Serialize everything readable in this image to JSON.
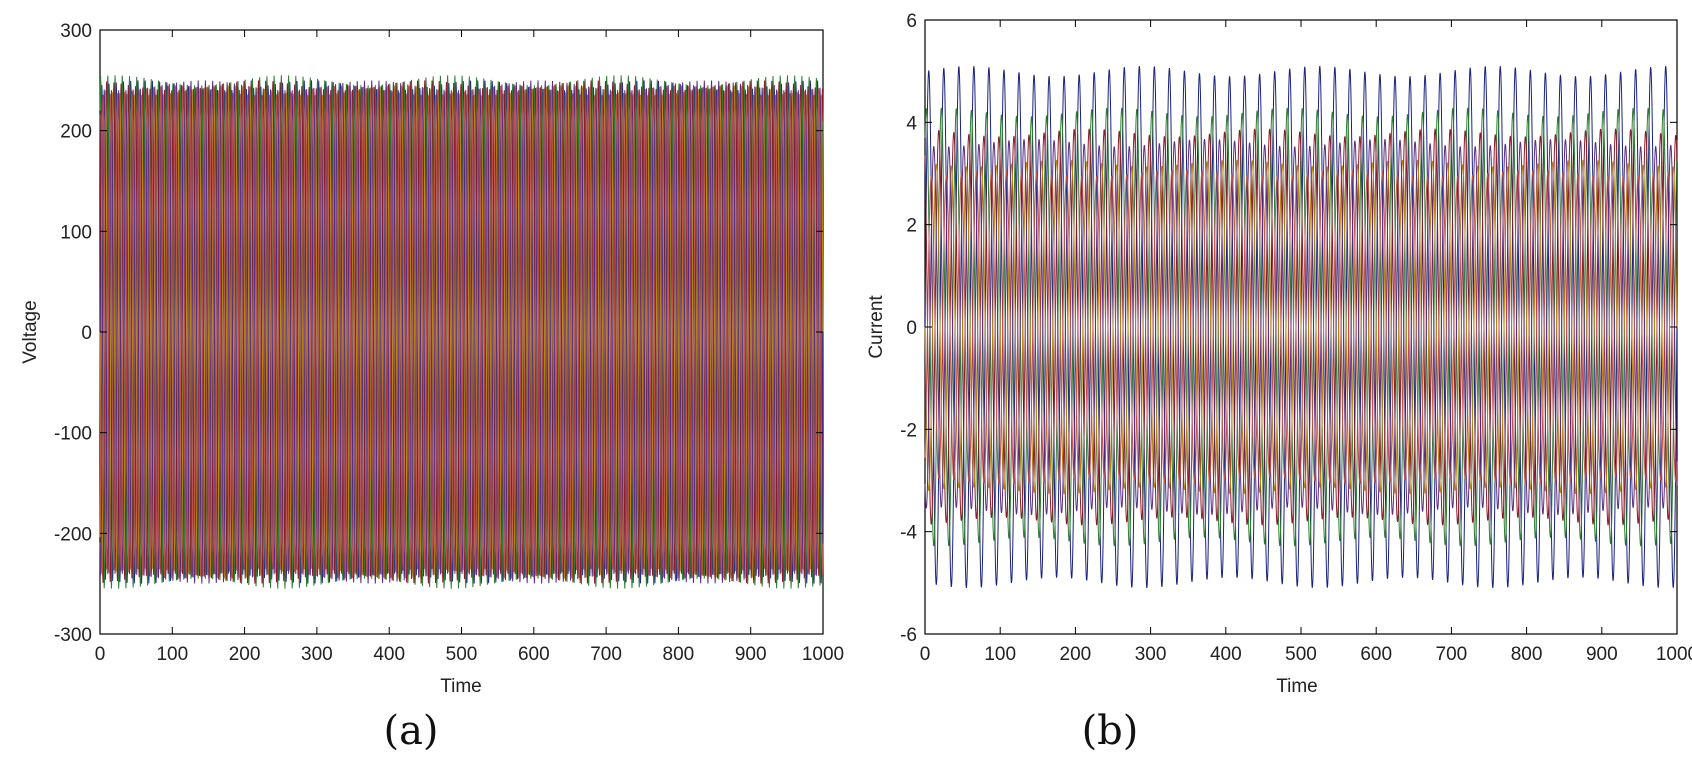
{
  "chart_data": [
    {
      "type": "line",
      "caption": "(a)",
      "xlabel": "Time",
      "ylabel": "Voltage",
      "xlim": [
        0,
        1000
      ],
      "ylim": [
        -300,
        300
      ],
      "xticks": [
        "0",
        "100",
        "200",
        "300",
        "400",
        "500",
        "600",
        "700",
        "800",
        "900",
        "1000"
      ],
      "yticks": [
        "300",
        "200",
        "100",
        "0",
        "-100",
        "-200",
        "-300"
      ],
      "grid": false,
      "series": [
        {
          "color": "#1f2a8c",
          "amplitude": 245,
          "phase_deg": 0
        },
        {
          "color": "#2e7d32",
          "amplitude": 250,
          "phase_deg": 60
        },
        {
          "color": "#8b1a2b",
          "amplitude": 245,
          "phase_deg": 120
        },
        {
          "color": "#b8860b",
          "amplitude": 240,
          "phase_deg": 180
        },
        {
          "color": "#5a2d82",
          "amplitude": 245,
          "phase_deg": 240
        },
        {
          "color": "#c0504d",
          "amplitude": 240,
          "phase_deg": 300
        }
      ],
      "cycles": 100
    },
    {
      "type": "line",
      "caption": "(b)",
      "xlabel": "Time",
      "ylabel": "Current",
      "xlim": [
        0,
        1000
      ],
      "ylim": [
        -6,
        6
      ],
      "xticks": [
        "0",
        "100",
        "200",
        "300",
        "400",
        "500",
        "600",
        "700",
        "800",
        "900",
        "1000"
      ],
      "yticks": [
        "6",
        "4",
        "2",
        "0",
        "-2",
        "-4",
        "-6"
      ],
      "grid": false,
      "series": [
        {
          "color": "#1a237e",
          "amplitude": 5.0,
          "phase_deg": 0
        },
        {
          "color": "#2e7d32",
          "amplitude": 4.2,
          "phase_deg": 60
        },
        {
          "color": "#8b1a2b",
          "amplitude": 3.8,
          "phase_deg": 120
        },
        {
          "color": "#b8860b",
          "amplitude": 3.2,
          "phase_deg": 180
        },
        {
          "color": "#5a2d82",
          "amplitude": 3.6,
          "phase_deg": 240
        },
        {
          "color": "#c0504d",
          "amplitude": 3.0,
          "phase_deg": 300
        }
      ],
      "cycles": 50
    }
  ]
}
